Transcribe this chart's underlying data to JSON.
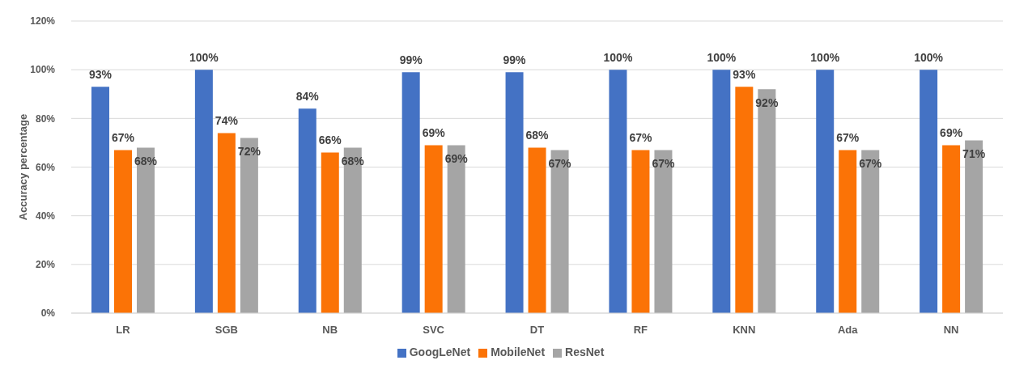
{
  "chart_data": {
    "type": "bar",
    "ylabel": "Accuracy percentage",
    "categories": [
      "LR",
      "SGB",
      "NB",
      "SVC",
      "DT",
      "RF",
      "KNN",
      "Ada",
      "NN"
    ],
    "series": [
      {
        "name": "GoogLeNet",
        "color": "#4472c4",
        "values": [
          93,
          100,
          84,
          99,
          99,
          100,
          100,
          100,
          100
        ],
        "value_labels": [
          "93%",
          "100%",
          "84%",
          "99%",
          "99%",
          "100%",
          "100%",
          "100%",
          "100%"
        ]
      },
      {
        "name": "MobileNet",
        "color": "#fb7306",
        "values": [
          67,
          74,
          66,
          69,
          68,
          67,
          93,
          67,
          69
        ],
        "value_labels": [
          "67%",
          "74%",
          "66%",
          "69%",
          "68%",
          "67%",
          "93%",
          "67%",
          "69%"
        ]
      },
      {
        "name": "ResNet",
        "color": "#a5a5a5",
        "values": [
          68,
          72,
          68,
          69,
          67,
          67,
          92,
          67,
          71
        ],
        "value_labels": [
          "68%",
          "72%",
          "68%",
          "69%",
          "67%",
          "67%",
          "92%",
          "67%",
          "71%"
        ]
      }
    ],
    "ylim": [
      0,
      120
    ],
    "yticks": [
      {
        "value": 0,
        "label": "0%"
      },
      {
        "value": 20,
        "label": "20%"
      },
      {
        "value": 40,
        "label": "40%"
      },
      {
        "value": 60,
        "label": "60%"
      },
      {
        "value": 80,
        "label": "80%"
      },
      {
        "value": 100,
        "label": "100%"
      },
      {
        "value": 120,
        "label": "120%"
      }
    ],
    "grid": "y",
    "legend": "bottom"
  }
}
